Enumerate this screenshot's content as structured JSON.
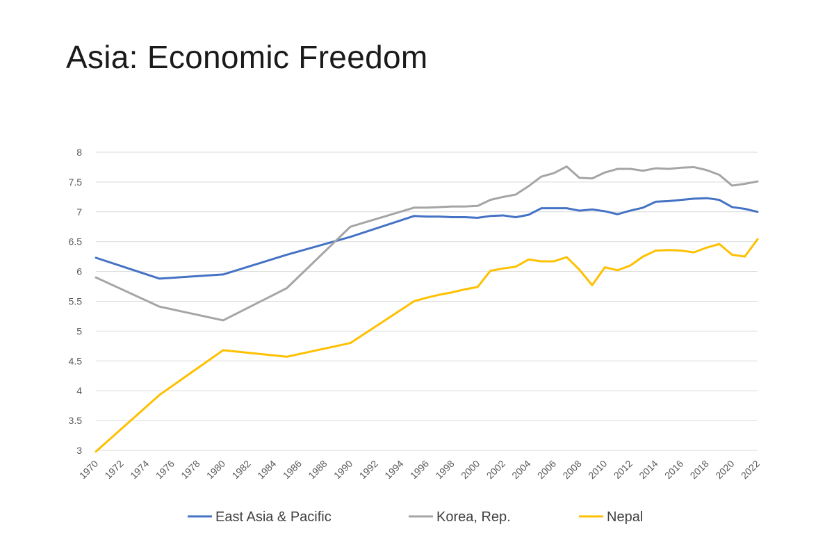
{
  "slide": {
    "title": "Asia: Economic Freedom"
  },
  "chart_data": {
    "type": "line",
    "title": "",
    "xlabel": "",
    "ylabel": "",
    "xlim": [
      1970,
      2022
    ],
    "ylim": [
      3,
      8
    ],
    "y_ticks": [
      "3",
      "3.5",
      "4",
      "4.5",
      "5",
      "5.5",
      "6",
      "6.5",
      "7",
      "7.5",
      "8"
    ],
    "x_ticks": [
      "1970",
      "1972",
      "1974",
      "1976",
      "1978",
      "1980",
      "1982",
      "1984",
      "1986",
      "1988",
      "1990",
      "1992",
      "1994",
      "1996",
      "1998",
      "2000",
      "2002",
      "2004",
      "2006",
      "2008",
      "2010",
      "2012",
      "2014",
      "2016",
      "2018",
      "2020",
      "2022"
    ],
    "grid": true,
    "legend_position": "bottom",
    "series": [
      {
        "name": "East Asia & Pacific",
        "color": "#4472c4",
        "points": [
          [
            1970,
            6.23
          ],
          [
            1975,
            5.88
          ],
          [
            1980,
            5.95
          ],
          [
            1985,
            6.28
          ],
          [
            1990,
            6.58
          ],
          [
            1995,
            6.93
          ],
          [
            1996,
            6.92
          ],
          [
            1997,
            6.92
          ],
          [
            1998,
            6.91
          ],
          [
            1999,
            6.91
          ],
          [
            2000,
            6.9
          ],
          [
            2001,
            6.93
          ],
          [
            2002,
            6.94
          ],
          [
            2003,
            6.91
          ],
          [
            2004,
            6.95
          ],
          [
            2005,
            7.06
          ],
          [
            2006,
            7.06
          ],
          [
            2007,
            7.06
          ],
          [
            2008,
            7.02
          ],
          [
            2009,
            7.04
          ],
          [
            2010,
            7.01
          ],
          [
            2011,
            6.96
          ],
          [
            2012,
            7.02
          ],
          [
            2013,
            7.07
          ],
          [
            2014,
            7.17
          ],
          [
            2015,
            7.18
          ],
          [
            2016,
            7.2
          ],
          [
            2017,
            7.22
          ],
          [
            2018,
            7.23
          ],
          [
            2019,
            7.2
          ],
          [
            2020,
            7.08
          ],
          [
            2021,
            7.05
          ],
          [
            2022,
            7.0
          ]
        ]
      },
      {
        "name": "Korea, Rep.",
        "color": "#a5a5a5",
        "points": [
          [
            1970,
            5.9
          ],
          [
            1975,
            5.41
          ],
          [
            1980,
            5.18
          ],
          [
            1985,
            5.72
          ],
          [
            1990,
            6.75
          ],
          [
            1995,
            7.07
          ],
          [
            1996,
            7.07
          ],
          [
            1997,
            7.08
          ],
          [
            1998,
            7.09
          ],
          [
            1999,
            7.09
          ],
          [
            2000,
            7.1
          ],
          [
            2001,
            7.2
          ],
          [
            2002,
            7.25
          ],
          [
            2003,
            7.29
          ],
          [
            2004,
            7.43
          ],
          [
            2005,
            7.59
          ],
          [
            2006,
            7.65
          ],
          [
            2007,
            7.76
          ],
          [
            2008,
            7.57
          ],
          [
            2009,
            7.56
          ],
          [
            2010,
            7.66
          ],
          [
            2011,
            7.72
          ],
          [
            2012,
            7.72
          ],
          [
            2013,
            7.69
          ],
          [
            2014,
            7.73
          ],
          [
            2015,
            7.72
          ],
          [
            2016,
            7.74
          ],
          [
            2017,
            7.75
          ],
          [
            2018,
            7.7
          ],
          [
            2019,
            7.62
          ],
          [
            2020,
            7.44
          ],
          [
            2021,
            7.47
          ],
          [
            2022,
            7.51
          ]
        ]
      },
      {
        "name": "Nepal",
        "color": "#ffc000",
        "points": [
          [
            1970,
            2.98
          ],
          [
            1975,
            3.93
          ],
          [
            1980,
            4.68
          ],
          [
            1985,
            4.57
          ],
          [
            1990,
            4.8
          ],
          [
            1995,
            5.5
          ],
          [
            1996,
            5.56
          ],
          [
            1997,
            5.61
          ],
          [
            1998,
            5.65
          ],
          [
            1999,
            5.7
          ],
          [
            2000,
            5.74
          ],
          [
            2001,
            6.01
          ],
          [
            2002,
            6.05
          ],
          [
            2003,
            6.08
          ],
          [
            2004,
            6.2
          ],
          [
            2005,
            6.17
          ],
          [
            2006,
            6.17
          ],
          [
            2007,
            6.24
          ],
          [
            2008,
            6.03
          ],
          [
            2009,
            5.77
          ],
          [
            2010,
            6.07
          ],
          [
            2011,
            6.02
          ],
          [
            2012,
            6.1
          ],
          [
            2013,
            6.25
          ],
          [
            2014,
            6.35
          ],
          [
            2015,
            6.36
          ],
          [
            2016,
            6.35
          ],
          [
            2017,
            6.32
          ],
          [
            2018,
            6.4
          ],
          [
            2019,
            6.46
          ],
          [
            2020,
            6.28
          ],
          [
            2021,
            6.25
          ],
          [
            2022,
            6.54
          ]
        ]
      }
    ]
  }
}
